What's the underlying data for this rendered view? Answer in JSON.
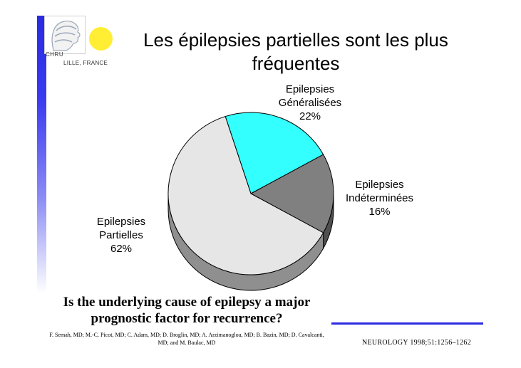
{
  "logo": {
    "line1": "CHRU",
    "line2": "LILLE, FRANCE"
  },
  "title": "Les épilepsies partielles sont les plus fréquentes",
  "colors": {
    "sidebar": "#2a2ae0",
    "sun": "#ffee33",
    "rule": "#2a2ae0"
  },
  "chart_data": {
    "type": "pie",
    "title": "",
    "slices": [
      {
        "label": [
          "Epilepsies",
          "Généralisées",
          "22%"
        ],
        "value": 22,
        "color": "#33ffff"
      },
      {
        "label": [
          "Epilepsies",
          "Indéterminées",
          "16%"
        ],
        "value": 16,
        "color": "#808080"
      },
      {
        "label": [
          "Epilepsies",
          "Partielles",
          "62%"
        ],
        "value": 62,
        "color": "#e6e6e6"
      }
    ],
    "style": "3d"
  },
  "question": "Is the underlying cause of epilepsy a major prognostic factor for recurrence?",
  "authors": "F. Semah, MD; M.-C. Picot, MD; C. Adam, MD; D. Broglin, MD; A. Arzimanoglou, MD; B. Bazin, MD; D. Cavalcanti, MD; and M. Baulac, MD",
  "citation": "NEUROLOGY 1998;51:1256–1262"
}
